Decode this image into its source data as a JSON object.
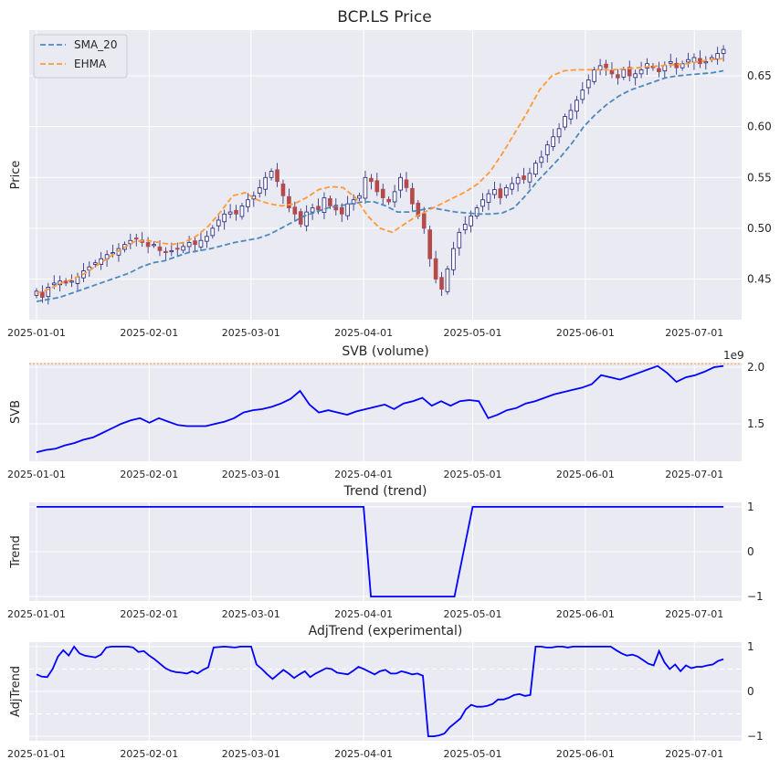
{
  "chart_data": [
    {
      "type": "candlestick+line",
      "title": "BCP.LS Price",
      "ylabel": "Price",
      "x_ticks": [
        "2025-01-01",
        "2025-02-01",
        "2025-03-01",
        "2025-04-01",
        "2025-05-01",
        "2025-06-01",
        "2025-07-01"
      ],
      "yticks": [
        "0.45",
        "0.50",
        "0.55",
        "0.60",
        "0.65"
      ],
      "ylim": [
        0.41,
        0.695
      ],
      "legend": {
        "position": "top-left",
        "entries": [
          "SMA_20",
          "EHMA"
        ]
      },
      "colors": {
        "up": "#ffffff",
        "down": "#b54a4a",
        "wick": "#1f1f7a",
        "SMA_20": "#4a8bbf",
        "EHMA": "#ff9a3a"
      },
      "candles_close": [
        0.438,
        0.432,
        0.442,
        0.446,
        0.448,
        0.446,
        0.448,
        0.452,
        0.458,
        0.462,
        0.466,
        0.47,
        0.474,
        0.476,
        0.48,
        0.484,
        0.488,
        0.49,
        0.486,
        0.482,
        0.484,
        0.478,
        0.476,
        0.478,
        0.48,
        0.482,
        0.486,
        0.484,
        0.488,
        0.492,
        0.5,
        0.508,
        0.514,
        0.516,
        0.514,
        0.522,
        0.528,
        0.532,
        0.54,
        0.55,
        0.556,
        0.546,
        0.532,
        0.52,
        0.514,
        0.504,
        0.516,
        0.52,
        0.518,
        0.53,
        0.522,
        0.518,
        0.514,
        0.524,
        0.528,
        0.532,
        0.55,
        0.546,
        0.536,
        0.53,
        0.526,
        0.536,
        0.55,
        0.54,
        0.524,
        0.512,
        0.5,
        0.47,
        0.45,
        0.44,
        0.46,
        0.48,
        0.496,
        0.504,
        0.512,
        0.52,
        0.528,
        0.534,
        0.538,
        0.53,
        0.54,
        0.544,
        0.55,
        0.548,
        0.554,
        0.564,
        0.57,
        0.582,
        0.59,
        0.598,
        0.61,
        0.616,
        0.626,
        0.636,
        0.646,
        0.656,
        0.66,
        0.658,
        0.652,
        0.648,
        0.656,
        0.65,
        0.652,
        0.656,
        0.662,
        0.658,
        0.654,
        0.66,
        0.664,
        0.658,
        0.662,
        0.666,
        0.668,
        0.662,
        0.664,
        0.668,
        0.672,
        0.676
      ],
      "series": [
        {
          "name": "SMA_20",
          "values": [
            0.428,
            0.43,
            0.432,
            0.436,
            0.44,
            0.444,
            0.448,
            0.452,
            0.456,
            0.462,
            0.466,
            0.468,
            0.472,
            0.476,
            0.478,
            0.48,
            0.483,
            0.486,
            0.488,
            0.49,
            0.494,
            0.5,
            0.506,
            0.512,
            0.516,
            0.52,
            0.522,
            0.524,
            0.526,
            0.526,
            0.522,
            0.516,
            0.516,
            0.518,
            0.52,
            0.518,
            0.516,
            0.515,
            0.514,
            0.514,
            0.515,
            0.52,
            0.532,
            0.546,
            0.558,
            0.57,
            0.584,
            0.6,
            0.612,
            0.622,
            0.63,
            0.636,
            0.64,
            0.644,
            0.648,
            0.65,
            0.651,
            0.652,
            0.653,
            0.655
          ]
        },
        {
          "name": "EHMA",
          "values": [
            0.436,
            0.44,
            0.446,
            0.45,
            0.456,
            0.464,
            0.472,
            0.48,
            0.487,
            0.488,
            0.486,
            0.484,
            0.486,
            0.492,
            0.502,
            0.516,
            0.532,
            0.535,
            0.528,
            0.524,
            0.522,
            0.524,
            0.53,
            0.538,
            0.541,
            0.54,
            0.53,
            0.512,
            0.5,
            0.496,
            0.504,
            0.512,
            0.518,
            0.524,
            0.53,
            0.536,
            0.544,
            0.556,
            0.574,
            0.594,
            0.614,
            0.636,
            0.65,
            0.655,
            0.656,
            0.656,
            0.656,
            0.656,
            0.657,
            0.658,
            0.659,
            0.66,
            0.661,
            0.662,
            0.664,
            0.666,
            0.667
          ]
        }
      ]
    },
    {
      "type": "line",
      "title": "SVB (volume)",
      "ylabel": "SVB",
      "scale_label": "1e9",
      "x_ticks": [
        "2025-01-01",
        "2025-02-01",
        "2025-03-01",
        "2025-04-01",
        "2025-05-01",
        "2025-06-01",
        "2025-07-01"
      ],
      "yticks": [
        "1.5",
        "2.0"
      ],
      "ylim": [
        1.17,
        2.04
      ],
      "reference_line": 2.03,
      "series": [
        {
          "name": "SVB",
          "color": "#0000ff",
          "values": [
            1.25,
            1.27,
            1.28,
            1.31,
            1.33,
            1.36,
            1.38,
            1.42,
            1.46,
            1.5,
            1.53,
            1.55,
            1.51,
            1.55,
            1.52,
            1.49,
            1.48,
            1.48,
            1.48,
            1.5,
            1.52,
            1.55,
            1.6,
            1.62,
            1.63,
            1.65,
            1.68,
            1.72,
            1.79,
            1.67,
            1.6,
            1.62,
            1.6,
            1.58,
            1.61,
            1.63,
            1.65,
            1.67,
            1.63,
            1.68,
            1.7,
            1.73,
            1.66,
            1.7,
            1.66,
            1.7,
            1.71,
            1.7,
            1.55,
            1.58,
            1.62,
            1.64,
            1.68,
            1.7,
            1.73,
            1.76,
            1.78,
            1.8,
            1.82,
            1.85,
            1.93,
            1.91,
            1.89,
            1.92,
            1.95,
            1.98,
            2.01,
            1.95,
            1.87,
            1.91,
            1.93,
            1.96,
            2.0,
            2.01
          ]
        }
      ]
    },
    {
      "type": "line",
      "title": "Trend (trend)",
      "ylabel": "Trend",
      "x_ticks": [
        "2025-01-01",
        "2025-02-01",
        "2025-03-01",
        "2025-04-01",
        "2025-05-01",
        "2025-06-01",
        "2025-07-01"
      ],
      "yticks": [
        "1",
        "0",
        "−1"
      ],
      "ylim": [
        -1.1,
        1.1
      ],
      "series": [
        {
          "name": "trend",
          "color": "#0000ff",
          "points": [
            [
              "2025-01-01",
              1
            ],
            [
              "2025-04-01",
              1
            ],
            [
              "2025-04-03",
              -1
            ],
            [
              "2025-04-26",
              -1
            ],
            [
              "2025-05-01",
              1
            ],
            [
              "2025-07-09",
              1
            ]
          ]
        }
      ]
    },
    {
      "type": "line",
      "title": "AdjTrend (experimental)",
      "ylabel": "AdjTrend",
      "x_ticks": [
        "2025-01-01",
        "2025-02-01",
        "2025-03-01",
        "2025-04-01",
        "2025-05-01",
        "2025-06-01",
        "2025-07-01"
      ],
      "yticks": [
        "1",
        "0",
        "−1"
      ],
      "ylim": [
        -1.1,
        1.1
      ],
      "reference_lines": [
        0.5,
        -0.5
      ],
      "series": [
        {
          "name": "adjtrend",
          "color": "#0000ff",
          "values": [
            0.38,
            0.33,
            0.32,
            0.5,
            0.78,
            0.92,
            0.8,
            1.0,
            0.85,
            0.8,
            0.78,
            0.76,
            0.82,
            0.98,
            1.0,
            1.0,
            1.0,
            1.0,
            0.98,
            0.88,
            0.9,
            0.8,
            0.72,
            0.62,
            0.52,
            0.46,
            0.43,
            0.42,
            0.4,
            0.45,
            0.4,
            0.48,
            0.54,
            0.98,
            0.99,
            1.0,
            0.99,
            0.98,
            1.0,
            1.0,
            1.0,
            0.6,
            0.5,
            0.38,
            0.28,
            0.38,
            0.48,
            0.4,
            0.3,
            0.38,
            0.45,
            0.32,
            0.4,
            0.46,
            0.52,
            0.5,
            0.42,
            0.4,
            0.38,
            0.46,
            0.55,
            0.5,
            0.44,
            0.38,
            0.45,
            0.48,
            0.4,
            0.4,
            0.45,
            0.42,
            0.38,
            0.4,
            0.35,
            -1.0,
            -1.0,
            -0.98,
            -0.94,
            -0.8,
            -0.7,
            -0.6,
            -0.4,
            -0.3,
            -0.34,
            -0.34,
            -0.32,
            -0.28,
            -0.18,
            -0.18,
            -0.14,
            -0.08,
            -0.06,
            -0.1,
            -0.08,
            1.0,
            1.0,
            0.98,
            0.98,
            1.0,
            1.0,
            0.98,
            1.0,
            1.0,
            1.0,
            1.0,
            1.0,
            1.0,
            1.0,
            1.0,
            0.92,
            0.85,
            0.8,
            0.82,
            0.78,
            0.7,
            0.62,
            0.58,
            0.9,
            0.65,
            0.5,
            0.6,
            0.45,
            0.58,
            0.52,
            0.55,
            0.55,
            0.58,
            0.6,
            0.68,
            0.72
          ]
        }
      ]
    }
  ]
}
